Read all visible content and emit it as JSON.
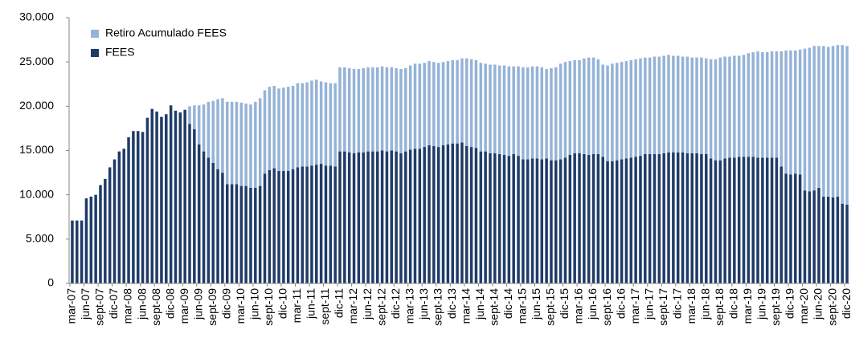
{
  "chart_data": {
    "type": "stacked_bar",
    "categories": [
      "mar-07",
      null,
      null,
      "jun-07",
      null,
      null,
      "sept-07",
      null,
      null,
      "dic-07",
      null,
      null,
      "mar-08",
      null,
      null,
      "jun-08",
      null,
      null,
      "sept-08",
      null,
      null,
      "dic-08",
      null,
      null,
      "mar-09",
      null,
      null,
      "jun-09",
      null,
      null,
      "sept-09",
      null,
      null,
      "dic-09",
      null,
      null,
      "mar-10",
      null,
      null,
      "jun-10",
      null,
      null,
      "sept-10",
      null,
      null,
      "dic-10",
      null,
      null,
      "mar-11",
      null,
      null,
      "jun-11",
      null,
      null,
      "sept-11",
      null,
      null,
      "dic-11",
      null,
      null,
      "mar-12",
      null,
      null,
      "jun-12",
      null,
      null,
      "sept-12",
      null,
      null,
      "dic-12",
      null,
      null,
      "mar-13",
      null,
      null,
      "jun-13",
      null,
      null,
      "sept-13",
      null,
      null,
      "dic-13",
      null,
      null,
      "mar-14",
      null,
      null,
      "jun-14",
      null,
      null,
      "sept-14",
      null,
      null,
      "dic-14",
      null,
      null,
      "mar-15",
      null,
      null,
      "jun-15",
      null,
      null,
      "sept-15",
      null,
      null,
      "dic-15",
      null,
      null,
      "mar-16",
      null,
      null,
      "jun-16",
      null,
      null,
      "sept-16",
      null,
      null,
      "dic-16",
      null,
      null,
      "mar-17",
      null,
      null,
      "jun-17",
      null,
      null,
      "sept-17",
      null,
      null,
      "dic-17",
      null,
      null,
      "mar-18",
      null,
      null,
      "jun-18",
      null,
      null,
      "sept-18",
      null,
      null,
      "dic-18",
      null,
      null,
      "mar-19",
      null,
      null,
      "jun-19",
      null,
      null,
      "sept-19",
      null,
      null,
      "dic-19",
      null,
      null,
      "mar-20",
      null,
      null,
      "jun-20",
      null,
      null,
      "sept-20",
      null,
      null,
      "dic-20"
    ],
    "series": [
      {
        "name": "Retiro Acumulado FEES",
        "color": "#95b3d7",
        "values": [
          0,
          0,
          0,
          0,
          0,
          0,
          0,
          0,
          0,
          0,
          0,
          0,
          0,
          0,
          0,
          0,
          0,
          0,
          0,
          0,
          0,
          0,
          0,
          0,
          0,
          2000,
          2700,
          4400,
          5300,
          6300,
          7000,
          7900,
          8400,
          9300,
          9300,
          9300,
          9400,
          9300,
          9400,
          9700,
          9900,
          9400,
          9400,
          9300,
          9300,
          9400,
          9500,
          9400,
          9500,
          9400,
          9500,
          9600,
          9600,
          9300,
          9400,
          9300,
          9400,
          9500,
          9500,
          9500,
          9500,
          9400,
          9500,
          9500,
          9500,
          9500,
          9500,
          9500,
          9400,
          9400,
          9500,
          9400,
          9500,
          9600,
          9600,
          9500,
          9500,
          9500,
          9500,
          9400,
          9400,
          9400,
          9400,
          9500,
          9900,
          9900,
          9900,
          10000,
          9900,
          10000,
          10000,
          10000,
          10100,
          10100,
          9900,
          10100,
          10400,
          10400,
          10400,
          10400,
          10400,
          10100,
          10400,
          10500,
          10800,
          10800,
          10600,
          10500,
          10500,
          10800,
          11000,
          10900,
          10700,
          10400,
          10800,
          11000,
          11000,
          11000,
          11000,
          11000,
          11000,
          11000,
          10900,
          10900,
          11000,
          11000,
          11000,
          11000,
          10900,
          10900,
          10800,
          10900,
          10800,
          10800,
          10900,
          10800,
          11200,
          11400,
          11600,
          11500,
          11400,
          11500,
          11400,
          11500,
          11700,
          11800,
          12000,
          11900,
          11900,
          12000,
          12000,
          13000,
          13900,
          14000,
          13900,
          14100,
          16000,
          16200,
          16300,
          16000,
          17000,
          16900,
          17100,
          17100,
          17900,
          17900
        ]
      },
      {
        "name": "FEES",
        "color": "#1f3b68",
        "values": [
          7100,
          7100,
          7100,
          9600,
          9800,
          10000,
          11100,
          11800,
          13100,
          14000,
          14900,
          15200,
          16500,
          17200,
          17200,
          17100,
          18700,
          19700,
          19400,
          18800,
          19100,
          20100,
          19500,
          19300,
          19600,
          18000,
          17400,
          15700,
          14900,
          14200,
          13600,
          12900,
          12500,
          11200,
          11200,
          11200,
          11000,
          11000,
          10800,
          10800,
          11000,
          12400,
          12800,
          13000,
          12700,
          12700,
          12700,
          12900,
          13100,
          13200,
          13200,
          13300,
          13400,
          13500,
          13300,
          13300,
          13200,
          14900,
          14900,
          14800,
          14700,
          14800,
          14800,
          14900,
          14900,
          14900,
          15000,
          14900,
          15000,
          14900,
          14700,
          14900,
          15100,
          15200,
          15200,
          15400,
          15600,
          15500,
          15400,
          15600,
          15700,
          15800,
          15800,
          15900,
          15500,
          15400,
          15300,
          14900,
          14900,
          14700,
          14700,
          14600,
          14500,
          14400,
          14600,
          14400,
          14000,
          14000,
          14100,
          14100,
          14000,
          14100,
          13900,
          13900,
          14000,
          14200,
          14500,
          14700,
          14700,
          14600,
          14500,
          14600,
          14600,
          14300,
          13800,
          13800,
          13900,
          14000,
          14100,
          14200,
          14300,
          14400,
          14600,
          14600,
          14600,
          14600,
          14700,
          14800,
          14800,
          14800,
          14800,
          14700,
          14700,
          14700,
          14600,
          14600,
          14100,
          13900,
          13900,
          14100,
          14200,
          14200,
          14300,
          14300,
          14300,
          14300,
          14200,
          14200,
          14200,
          14200,
          14200,
          13200,
          12400,
          12300,
          12400,
          12300,
          10500,
          10400,
          10500,
          10800,
          9800,
          9800,
          9700,
          9800,
          9000,
          8900
        ]
      }
    ],
    "ylim": [
      0,
      30000
    ],
    "yticks": [
      0,
      {
        "value": 5000,
        "label": "5.000"
      },
      {
        "value": 10000,
        "label": "10.000"
      },
      {
        "value": 15000,
        "label": "15.000"
      },
      {
        "value": 20000,
        "label": "20.000"
      },
      {
        "value": 25000,
        "label": "25.000"
      },
      {
        "value": 30000,
        "label": "30.000"
      }
    ],
    "grid": false,
    "legend": "top-left"
  }
}
